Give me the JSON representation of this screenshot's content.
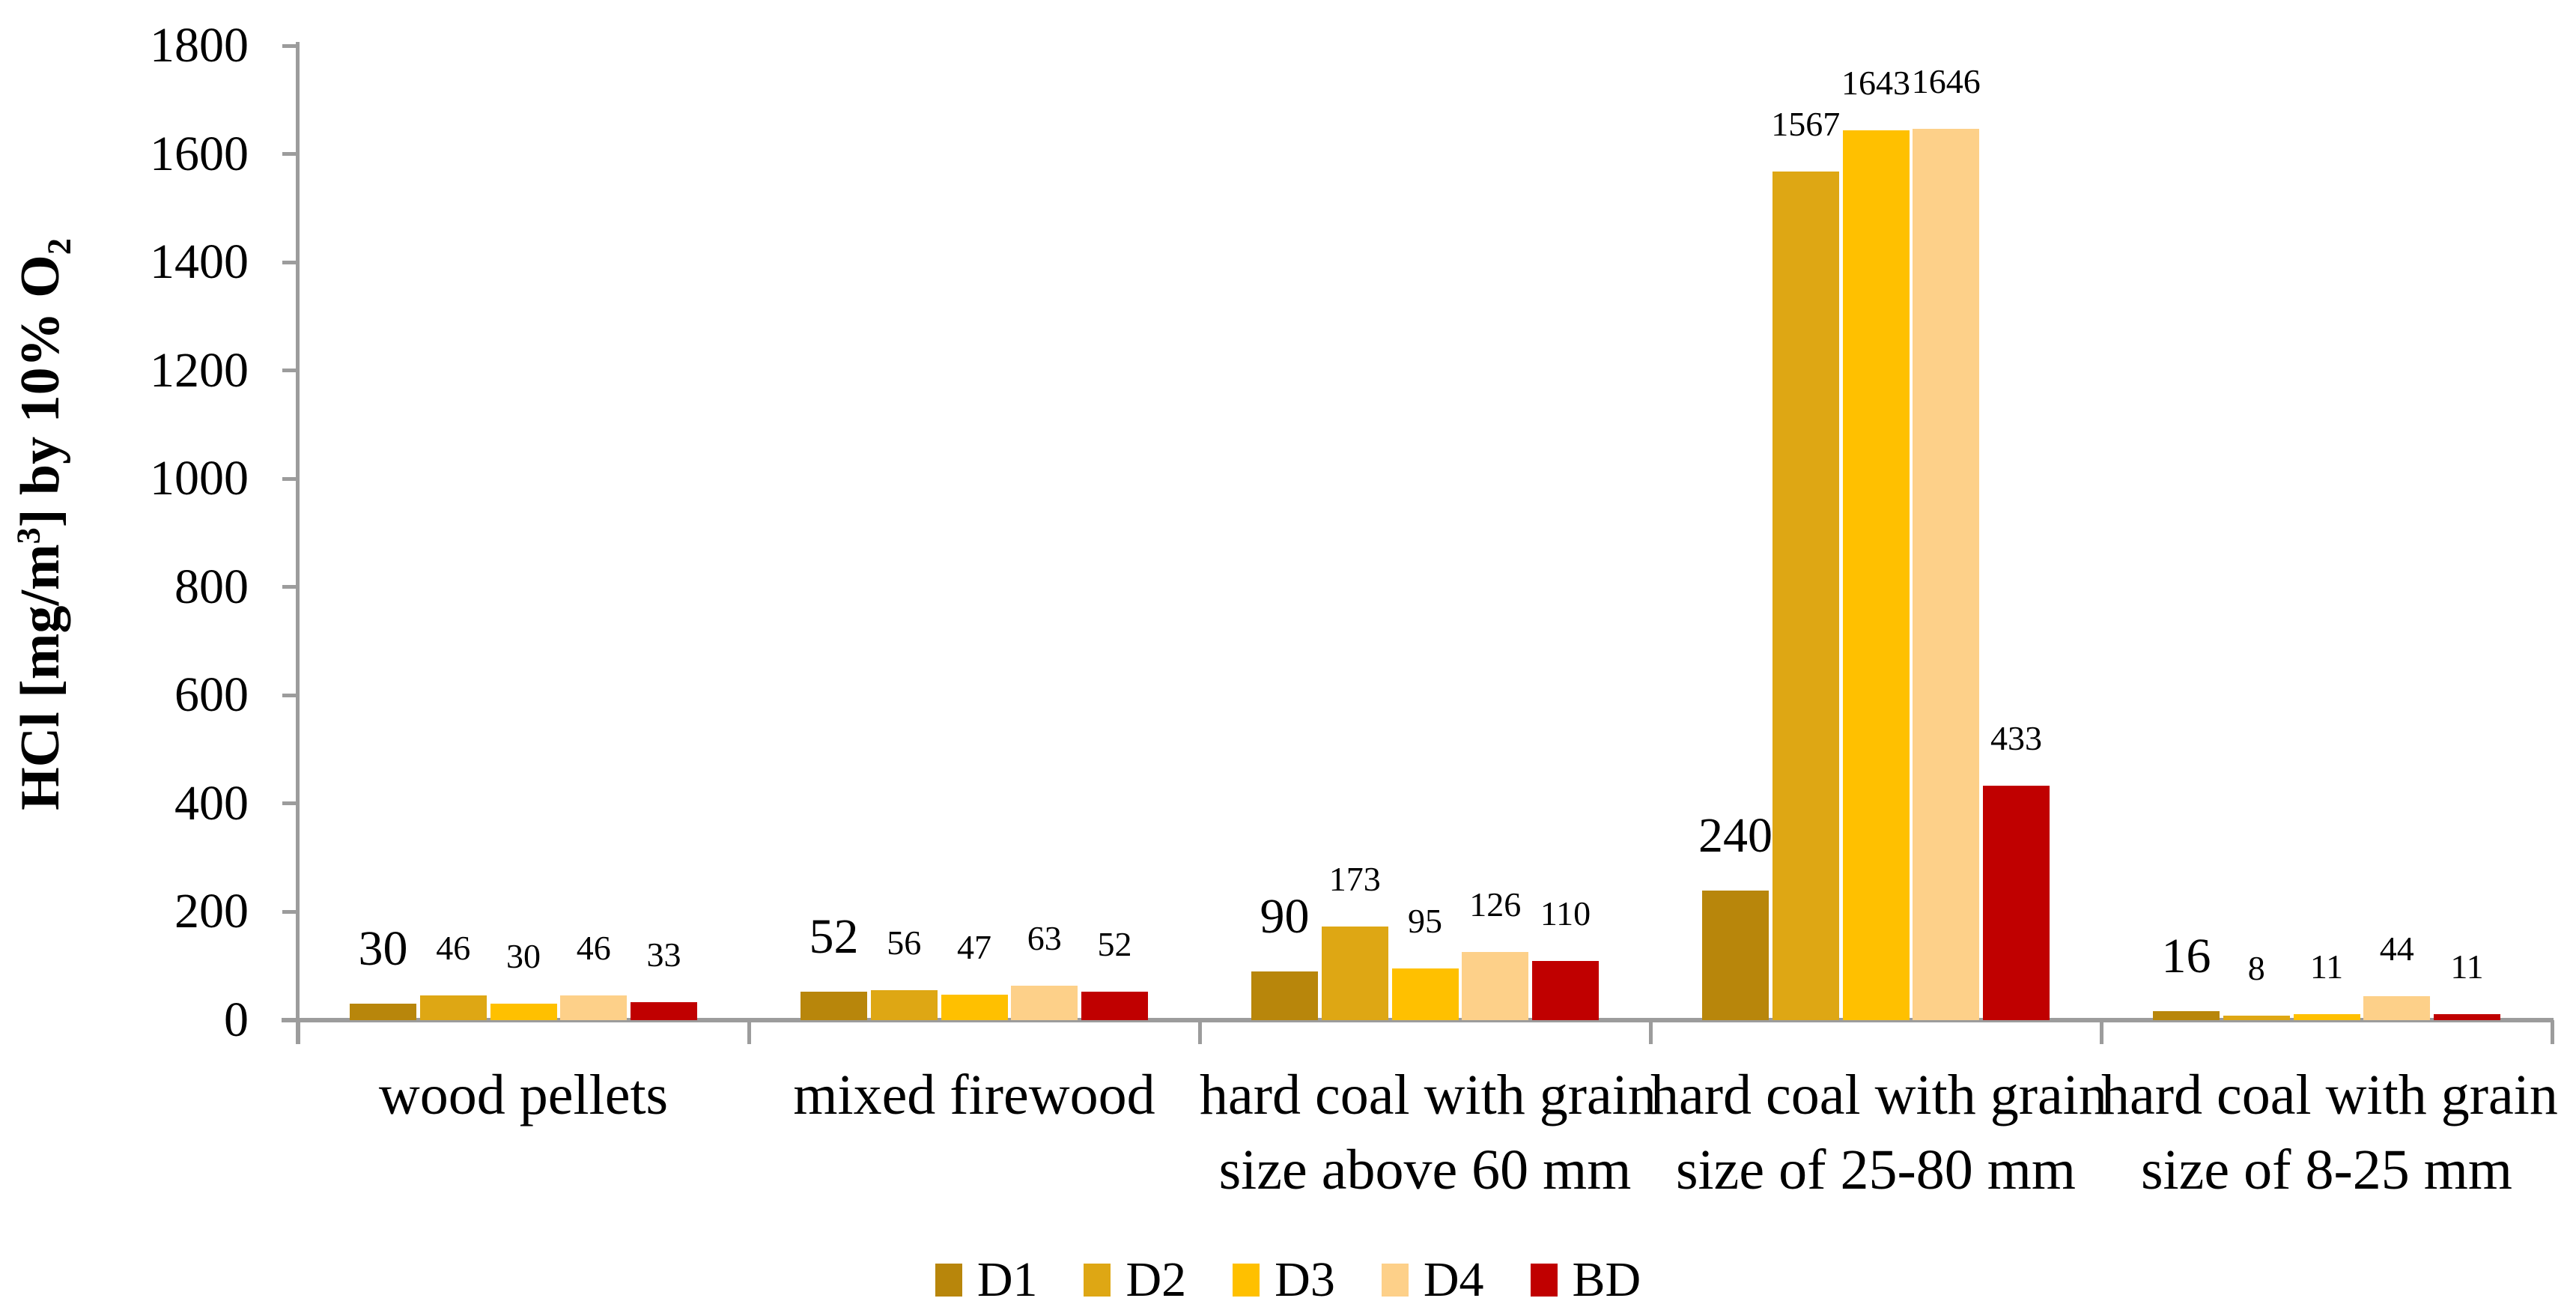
{
  "chart_data": {
    "type": "bar",
    "title": "",
    "ylabel_text": "HCl [mg/m³] by 10% O₂",
    "ylabel_parts": {
      "pre": "HCl [mg/m",
      "sup": "3",
      "mid": "] by 10% O",
      "sub": "2"
    },
    "ylim": [
      0,
      1800
    ],
    "ytick_interval": 200,
    "yticks": [
      0,
      200,
      400,
      600,
      800,
      1000,
      1200,
      1400,
      1600,
      1800
    ],
    "grid": false,
    "legend_position": "bottom",
    "data_labels": "above bars; first series (D1) labels in larger font",
    "categories": [
      [
        "wood pellets"
      ],
      [
        "mixed firewood"
      ],
      [
        "hard coal with grain",
        "size above 60 mm"
      ],
      [
        "hard coal with grain",
        "size of 25-80 mm"
      ],
      [
        "hard coal with grain",
        "size of 8-25 mm"
      ]
    ],
    "series": [
      {
        "name": "D1",
        "color": "#B8860B",
        "label_style": "large",
        "values": [
          30,
          52,
          90,
          240,
          16
        ]
      },
      {
        "name": "D2",
        "color": "#DEA714",
        "label_style": "small",
        "values": [
          46,
          56,
          173,
          1567,
          8
        ]
      },
      {
        "name": "D3",
        "color": "#FFC000",
        "label_style": "small",
        "values": [
          30,
          47,
          95,
          1643,
          11
        ]
      },
      {
        "name": "D4",
        "color": "#FDD089",
        "label_style": "small",
        "values": [
          46,
          63,
          126,
          1646,
          44
        ]
      },
      {
        "name": "BD",
        "color": "#C00000",
        "label_style": "small",
        "values": [
          33,
          52,
          110,
          433,
          11
        ]
      }
    ],
    "colors": {
      "axis": "#9C9C9C",
      "text": "#000000",
      "background": "#FFFFFF"
    }
  }
}
